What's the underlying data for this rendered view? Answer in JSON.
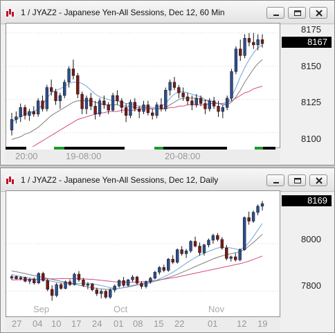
{
  "windows": [
    {
      "title": "1 / JYAZ2 - Japanese Yen-All Sessions, Dec 12, 60 Min",
      "last_price": "8167",
      "y_ticks": [
        {
          "label": "8175",
          "value": 8175
        },
        {
          "label": "8150",
          "value": 8150
        },
        {
          "label": "8125",
          "value": 8125
        },
        {
          "label": "8100",
          "value": 8100
        }
      ],
      "x_labels": [
        "20:00",
        "19-08:00",
        "20-08:00"
      ],
      "month_labels": []
    },
    {
      "title": "1 / JYAZ2 - Japanese Yen-All Sessions, Dec 12, Daily",
      "last_price": "8169",
      "y_ticks": [
        {
          "label": "8000",
          "value": 8000
        },
        {
          "label": "7800",
          "value": 7800
        }
      ],
      "x_labels": [
        "27",
        "04",
        "10",
        "17",
        "24",
        "01",
        "08",
        "15",
        "22",
        "01",
        "12",
        "19"
      ],
      "month_labels": [
        "Sep",
        "Oct",
        "Nov"
      ]
    }
  ],
  "colors": {
    "up": "#2c4f8f",
    "down": "#7a1a1a",
    "ma_short": "#6fa3d8",
    "ma_mid": "#7d7d7d",
    "ma_long": "#d6497d",
    "session_active": "#1c9a2e",
    "session_closed": "#000000",
    "grid": "#d0d0d0"
  },
  "chart_data": [
    {
      "type": "candlestick",
      "title": "1 / JYAZ2 - Japanese Yen-All Sessions, Dec 12, 60 Min",
      "ylim": [
        8090,
        8180
      ],
      "y_ticks": [
        8100,
        8125,
        8150,
        8175
      ],
      "last": 8167,
      "ohlc": [
        [
          8102,
          8115,
          8098,
          8110
        ],
        [
          8110,
          8116,
          8107,
          8112
        ],
        [
          8112,
          8122,
          8108,
          8119
        ],
        [
          8119,
          8121,
          8110,
          8113
        ],
        [
          8113,
          8118,
          8109,
          8116
        ],
        [
          8116,
          8120,
          8112,
          8114
        ],
        [
          8114,
          8126,
          8112,
          8124
        ],
        [
          8124,
          8128,
          8116,
          8118
        ],
        [
          8118,
          8136,
          8116,
          8134
        ],
        [
          8134,
          8140,
          8128,
          8131
        ],
        [
          8131,
          8133,
          8121,
          8124
        ],
        [
          8124,
          8130,
          8118,
          8128
        ],
        [
          8128,
          8140,
          8126,
          8138
        ],
        [
          8138,
          8150,
          8134,
          8148
        ],
        [
          8148,
          8155,
          8140,
          8143
        ],
        [
          8143,
          8145,
          8126,
          8129
        ],
        [
          8129,
          8131,
          8114,
          8118
        ],
        [
          8118,
          8128,
          8114,
          8126
        ],
        [
          8126,
          8130,
          8117,
          8120
        ],
        [
          8120,
          8124,
          8110,
          8114
        ],
        [
          8114,
          8126,
          8112,
          8124
        ],
        [
          8124,
          8128,
          8118,
          8121
        ],
        [
          8121,
          8123,
          8114,
          8117
        ],
        [
          8117,
          8130,
          8116,
          8128
        ],
        [
          8128,
          8132,
          8121,
          8124
        ],
        [
          8124,
          8126,
          8115,
          8119
        ],
        [
          8119,
          8122,
          8108,
          8113
        ],
        [
          8113,
          8125,
          8111,
          8123
        ],
        [
          8123,
          8126,
          8116,
          8118
        ],
        [
          8118,
          8120,
          8111,
          8116
        ],
        [
          8116,
          8124,
          8114,
          8121
        ],
        [
          8121,
          8124,
          8113,
          8115
        ],
        [
          8115,
          8118,
          8110,
          8113
        ],
        [
          8113,
          8123,
          8111,
          8121
        ],
        [
          8121,
          8126,
          8116,
          8118
        ],
        [
          8118,
          8134,
          8116,
          8132
        ],
        [
          8132,
          8140,
          8128,
          8138
        ],
        [
          8138,
          8142,
          8132,
          8134
        ],
        [
          8134,
          8136,
          8126,
          8130
        ],
        [
          8130,
          8134,
          8124,
          8127
        ],
        [
          8127,
          8130,
          8121,
          8124
        ],
        [
          8124,
          8128,
          8117,
          8121
        ],
        [
          8121,
          8129,
          8119,
          8126
        ],
        [
          8126,
          8128,
          8120,
          8122
        ],
        [
          8122,
          8125,
          8114,
          8118
        ],
        [
          8118,
          8126,
          8116,
          8124
        ],
        [
          8124,
          8127,
          8118,
          8120
        ],
        [
          8120,
          8124,
          8112,
          8116
        ],
        [
          8116,
          8121,
          8111,
          8119
        ],
        [
          8119,
          8128,
          8117,
          8126
        ],
        [
          8126,
          8148,
          8124,
          8146
        ],
        [
          8146,
          8165,
          8144,
          8163
        ],
        [
          8163,
          8170,
          8154,
          8158
        ],
        [
          8158,
          8174,
          8156,
          8171
        ],
        [
          8171,
          8175,
          8165,
          8168
        ],
        [
          8168,
          8175,
          8163,
          8166
        ],
        [
          8166,
          8174,
          8162,
          8170
        ],
        [
          8170,
          8174,
          8164,
          8167
        ]
      ],
      "ma_short": [
        8108,
        8110,
        8112,
        8114,
        8115,
        8116,
        8118,
        8121,
        8126,
        8130,
        8132,
        8133,
        8135,
        8137,
        8138,
        8138,
        8137,
        8135,
        8132,
        8129,
        8127,
        8126,
        8125,
        8124,
        8124,
        8123,
        8122,
        8122,
        8121,
        8120,
        8120,
        8120,
        8119,
        8119,
        8120,
        8122,
        8126,
        8129,
        8131,
        8131,
        8130,
        8129,
        8128,
        8127,
        8125,
        8124,
        8123,
        8122,
        8121,
        8122,
        8127,
        8134,
        8142,
        8149,
        8155,
        8160,
        8164,
        8166
      ],
      "ma_mid": [
        8095,
        8096,
        8097,
        8099,
        8100,
        8102,
        8104,
        8107,
        8110,
        8113,
        8115,
        8117,
        8119,
        8121,
        8123,
        8124,
        8124,
        8124,
        8124,
        8123,
        8122,
        8121,
        8121,
        8121,
        8121,
        8120,
        8120,
        8120,
        8119,
        8119,
        8119,
        8119,
        8118,
        8118,
        8118,
        8119,
        8121,
        8123,
        8125,
        8126,
        8126,
        8126,
        8126,
        8125,
        8124,
        8124,
        8123,
        8122,
        8121,
        8121,
        8123,
        8127,
        8132,
        8138,
        8143,
        8148,
        8152,
        8155
      ],
      "ma_long": [
        8080,
        8082,
        8084,
        8086,
        8088,
        8090,
        8092,
        8094,
        8096,
        8098,
        8100,
        8102,
        8104,
        8106,
        8108,
        8110,
        8111,
        8112,
        8113,
        8114,
        8115,
        8115,
        8116,
        8116,
        8116,
        8117,
        8117,
        8117,
        8117,
        8118,
        8118,
        8118,
        8118,
        8118,
        8118,
        8118,
        8119,
        8119,
        8120,
        8120,
        8121,
        8121,
        8121,
        8121,
        8121,
        8122,
        8122,
        8122,
        8122,
        8123,
        8124,
        8126,
        8128,
        8130,
        8131,
        8133,
        8134,
        8135
      ]
    },
    {
      "type": "candlestick",
      "title": "1 / JYAZ2 - Japanese Yen-All Sessions, Dec 12, Daily",
      "ylim": [
        7700,
        8210
      ],
      "y_ticks": [
        7800,
        8000
      ],
      "last": 8169,
      "ohlc": [
        [
          7855,
          7870,
          7848,
          7862
        ],
        [
          7862,
          7866,
          7850,
          7852
        ],
        [
          7852,
          7864,
          7846,
          7858
        ],
        [
          7858,
          7862,
          7838,
          7842
        ],
        [
          7842,
          7856,
          7830,
          7850
        ],
        [
          7850,
          7858,
          7828,
          7835
        ],
        [
          7835,
          7880,
          7830,
          7875
        ],
        [
          7875,
          7882,
          7840,
          7845
        ],
        [
          7845,
          7852,
          7800,
          7808
        ],
        [
          7808,
          7825,
          7760,
          7782
        ],
        [
          7782,
          7835,
          7775,
          7828
        ],
        [
          7828,
          7836,
          7806,
          7812
        ],
        [
          7812,
          7845,
          7808,
          7840
        ],
        [
          7840,
          7850,
          7822,
          7828
        ],
        [
          7828,
          7878,
          7824,
          7872
        ],
        [
          7872,
          7885,
          7840,
          7848
        ],
        [
          7848,
          7856,
          7818,
          7825
        ],
        [
          7825,
          7838,
          7808,
          7830
        ],
        [
          7830,
          7835,
          7800,
          7806
        ],
        [
          7806,
          7815,
          7780,
          7790
        ],
        [
          7790,
          7808,
          7770,
          7800
        ],
        [
          7800,
          7806,
          7768,
          7775
        ],
        [
          7775,
          7812,
          7768,
          7805
        ],
        [
          7805,
          7828,
          7795,
          7822
        ],
        [
          7822,
          7850,
          7815,
          7845
        ],
        [
          7845,
          7860,
          7818,
          7825
        ],
        [
          7825,
          7852,
          7820,
          7848
        ],
        [
          7848,
          7868,
          7840,
          7860
        ],
        [
          7860,
          7865,
          7828,
          7834
        ],
        [
          7834,
          7842,
          7810,
          7820
        ],
        [
          7820,
          7845,
          7812,
          7840
        ],
        [
          7840,
          7860,
          7832,
          7855
        ],
        [
          7855,
          7886,
          7850,
          7880
        ],
        [
          7880,
          7906,
          7870,
          7900
        ],
        [
          7900,
          7912,
          7880,
          7888
        ],
        [
          7888,
          7940,
          7882,
          7935
        ],
        [
          7935,
          7952,
          7915,
          7922
        ],
        [
          7922,
          7980,
          7916,
          7975
        ],
        [
          7975,
          7990,
          7950,
          7958
        ],
        [
          7958,
          7978,
          7940,
          7970
        ],
        [
          7970,
          8015,
          7962,
          8010
        ],
        [
          8010,
          8030,
          7985,
          7990
        ],
        [
          7990,
          8005,
          7950,
          7962
        ],
        [
          7962,
          8000,
          7950,
          7995
        ],
        [
          7995,
          8022,
          7985,
          8015
        ],
        [
          8015,
          8042,
          8000,
          8035
        ],
        [
          8035,
          8045,
          8010,
          8018
        ],
        [
          8018,
          8028,
          7975,
          7982
        ],
        [
          7982,
          7995,
          7930,
          7938
        ],
        [
          7938,
          7950,
          7925,
          7945
        ],
        [
          7945,
          7960,
          7925,
          7932
        ],
        [
          7932,
          7980,
          7926,
          7975
        ],
        [
          7975,
          8115,
          7970,
          8110
        ],
        [
          8110,
          8135,
          8080,
          8095
        ],
        [
          8095,
          8140,
          8088,
          8132
        ],
        [
          8132,
          8165,
          8120,
          8158
        ],
        [
          8158,
          8180,
          8140,
          8169
        ]
      ],
      "ma_short": [
        7870,
        7866,
        7862,
        7858,
        7855,
        7852,
        7850,
        7848,
        7846,
        7842,
        7838,
        7835,
        7832,
        7830,
        7831,
        7833,
        7834,
        7834,
        7832,
        7828,
        7824,
        7820,
        7815,
        7812,
        7812,
        7815,
        7820,
        7825,
        7828,
        7830,
        7832,
        7836,
        7843,
        7852,
        7860,
        7870,
        7880,
        7892,
        7905,
        7918,
        7930,
        7942,
        7952,
        7960,
        7968,
        7975,
        7982,
        7985,
        7985,
        7982,
        7978,
        7975,
        7985,
        8005,
        8030,
        8058,
        8085
      ],
      "ma_mid": [
        7885,
        7882,
        7878,
        7874,
        7870,
        7866,
        7862,
        7858,
        7854,
        7850,
        7846,
        7842,
        7838,
        7834,
        7830,
        7826,
        7822,
        7818,
        7815,
        7812,
        7810,
        7808,
        7808,
        7810,
        7812,
        7815,
        7818,
        7822,
        7826,
        7830,
        7834,
        7838,
        7842,
        7847,
        7852,
        7858,
        7864,
        7871,
        7879,
        7887,
        7895,
        7904,
        7912,
        7920,
        7928,
        7936,
        7943,
        7949,
        7954,
        7958,
        7962,
        7966,
        7975,
        7990,
        8005,
        8022,
        8040
      ],
      "ma_long": [
        7848,
        7848,
        7849,
        7849,
        7850,
        7850,
        7851,
        7851,
        7852,
        7852,
        7852,
        7853,
        7853,
        7853,
        7853,
        7852,
        7852,
        7851,
        7850,
        7848,
        7846,
        7844,
        7842,
        7840,
        7839,
        7838,
        7838,
        7838,
        7839,
        7840,
        7841,
        7843,
        7845,
        7848,
        7851,
        7854,
        7857,
        7860,
        7864,
        7868,
        7872,
        7876,
        7880,
        7884,
        7888,
        7892,
        7896,
        7900,
        7904,
        7908,
        7912,
        7916,
        7921,
        7927,
        7934,
        7941,
        7948
      ]
    }
  ]
}
